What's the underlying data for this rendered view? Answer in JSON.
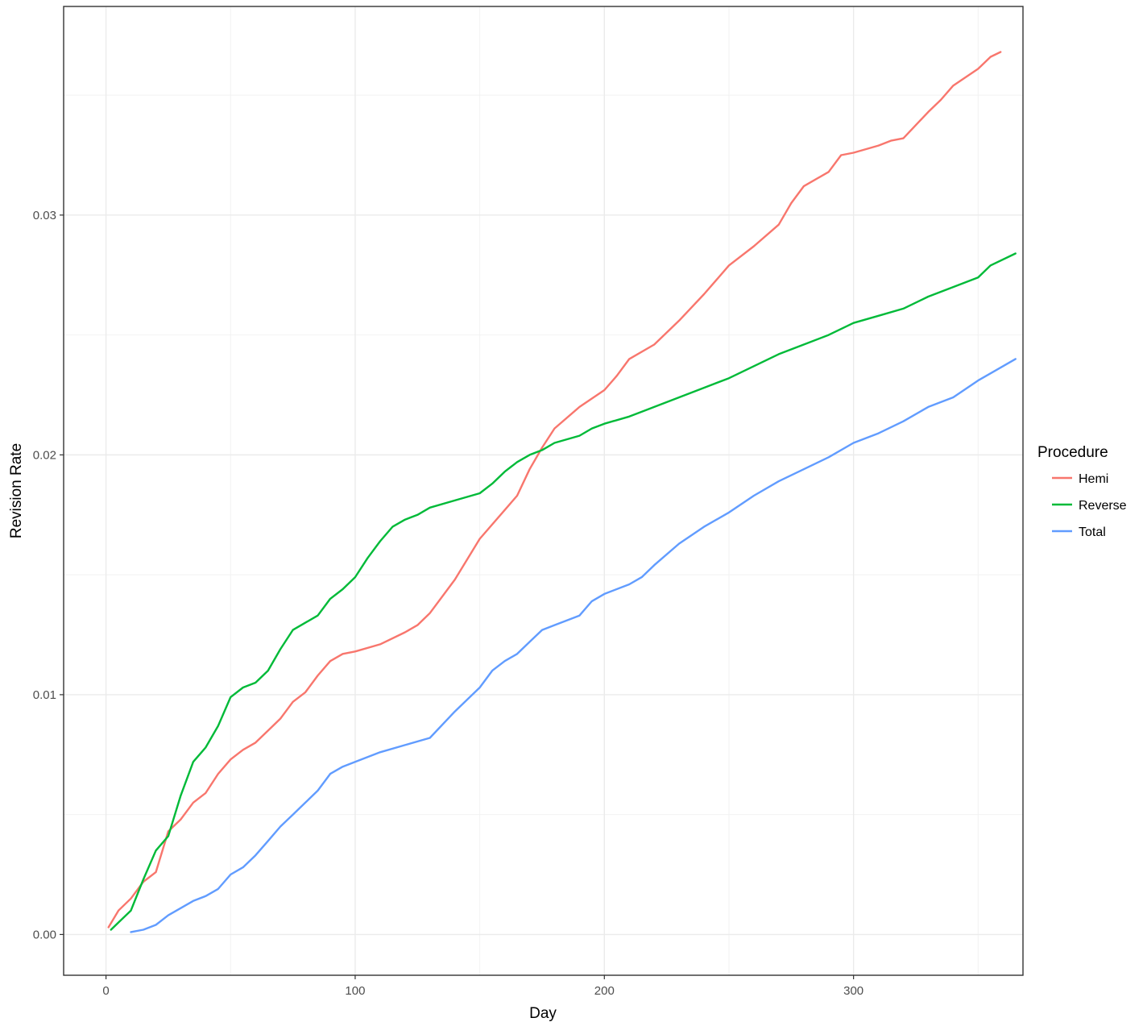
{
  "chart_data": {
    "type": "line",
    "title": "",
    "xlabel": "Day",
    "ylabel": "Revision Rate",
    "xlim": [
      -17,
      368
    ],
    "ylim": [
      -0.0017,
      0.0387
    ],
    "x_ticks": [
      0,
      100,
      200,
      300
    ],
    "x_tick_labels": [
      "0",
      "100",
      "200",
      "300"
    ],
    "y_ticks": [
      0.0,
      0.01,
      0.02,
      0.03
    ],
    "y_tick_labels": [
      "0.00",
      "0.01",
      "0.02",
      "0.03"
    ],
    "grid": true,
    "legend": {
      "title": "Procedure",
      "position": "right"
    },
    "series": [
      {
        "name": "Hemi",
        "color": "#F8766D",
        "x": [
          1,
          5,
          10,
          15,
          20,
          25,
          30,
          35,
          40,
          45,
          50,
          55,
          60,
          65,
          70,
          75,
          80,
          85,
          90,
          95,
          100,
          110,
          120,
          125,
          130,
          140,
          150,
          160,
          165,
          170,
          175,
          180,
          190,
          200,
          205,
          210,
          220,
          230,
          240,
          245,
          250,
          260,
          270,
          275,
          280,
          290,
          295,
          300,
          310,
          315,
          320,
          330,
          335,
          340,
          350,
          355,
          359
        ],
        "values": [
          0.0003,
          0.001,
          0.0015,
          0.0022,
          0.0026,
          0.0043,
          0.0048,
          0.0055,
          0.0059,
          0.0067,
          0.0073,
          0.0077,
          0.008,
          0.0085,
          0.009,
          0.0097,
          0.0101,
          0.0108,
          0.0114,
          0.0117,
          0.0118,
          0.0121,
          0.0126,
          0.0129,
          0.0134,
          0.0148,
          0.0165,
          0.0177,
          0.0183,
          0.0194,
          0.0203,
          0.0211,
          0.022,
          0.0227,
          0.0233,
          0.024,
          0.0246,
          0.0256,
          0.0267,
          0.0273,
          0.0279,
          0.0287,
          0.0296,
          0.0305,
          0.0312,
          0.0318,
          0.0325,
          0.0326,
          0.0329,
          0.0331,
          0.0332,
          0.0343,
          0.0348,
          0.0354,
          0.0361,
          0.0366,
          0.0368
        ]
      },
      {
        "name": "Reverse",
        "color": "#00BA38",
        "x": [
          2,
          5,
          10,
          15,
          20,
          25,
          30,
          35,
          40,
          45,
          50,
          55,
          60,
          65,
          70,
          75,
          80,
          85,
          90,
          95,
          100,
          105,
          110,
          115,
          120,
          125,
          130,
          140,
          150,
          155,
          160,
          165,
          170,
          175,
          180,
          190,
          195,
          200,
          210,
          220,
          230,
          240,
          250,
          260,
          270,
          280,
          290,
          300,
          310,
          320,
          330,
          340,
          350,
          355,
          365
        ],
        "values": [
          0.0002,
          0.0005,
          0.001,
          0.0023,
          0.0035,
          0.0041,
          0.0058,
          0.0072,
          0.0078,
          0.0087,
          0.0099,
          0.0103,
          0.0105,
          0.011,
          0.0119,
          0.0127,
          0.013,
          0.0133,
          0.014,
          0.0144,
          0.0149,
          0.0157,
          0.0164,
          0.017,
          0.0173,
          0.0175,
          0.0178,
          0.0181,
          0.0184,
          0.0188,
          0.0193,
          0.0197,
          0.02,
          0.0202,
          0.0205,
          0.0208,
          0.0211,
          0.0213,
          0.0216,
          0.022,
          0.0224,
          0.0228,
          0.0232,
          0.0237,
          0.0242,
          0.0246,
          0.025,
          0.0255,
          0.0258,
          0.0261,
          0.0266,
          0.027,
          0.0274,
          0.0279,
          0.0284
        ]
      },
      {
        "name": "Total",
        "color": "#619CFF",
        "x": [
          10,
          15,
          20,
          25,
          30,
          35,
          40,
          45,
          50,
          55,
          60,
          65,
          70,
          75,
          80,
          85,
          90,
          95,
          100,
          110,
          120,
          130,
          140,
          150,
          155,
          160,
          165,
          170,
          175,
          180,
          190,
          195,
          200,
          210,
          215,
          220,
          230,
          240,
          245,
          250,
          260,
          270,
          280,
          290,
          300,
          310,
          320,
          330,
          340,
          350,
          355,
          365
        ],
        "values": [
          0.0001,
          0.0002,
          0.0004,
          0.0008,
          0.0011,
          0.0014,
          0.0016,
          0.0019,
          0.0025,
          0.0028,
          0.0033,
          0.0039,
          0.0045,
          0.005,
          0.0055,
          0.006,
          0.0067,
          0.007,
          0.0072,
          0.0076,
          0.0079,
          0.0082,
          0.0093,
          0.0103,
          0.011,
          0.0114,
          0.0117,
          0.0122,
          0.0127,
          0.0129,
          0.0133,
          0.0139,
          0.0142,
          0.0146,
          0.0149,
          0.0154,
          0.0163,
          0.017,
          0.0173,
          0.0176,
          0.0183,
          0.0189,
          0.0194,
          0.0199,
          0.0205,
          0.0209,
          0.0214,
          0.022,
          0.0224,
          0.0231,
          0.0234,
          0.024
        ]
      }
    ]
  }
}
